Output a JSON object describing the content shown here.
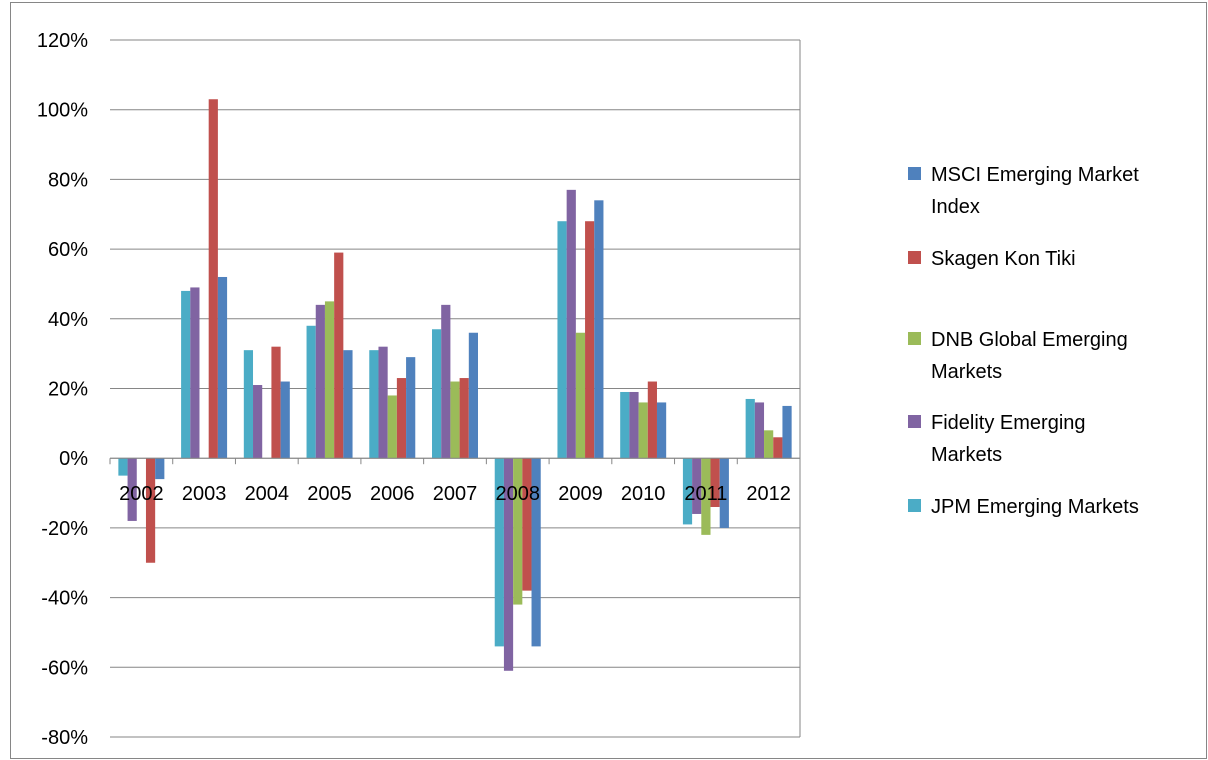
{
  "chart_data": {
    "type": "bar",
    "categories": [
      "2002",
      "2003",
      "2004",
      "2005",
      "2006",
      "2007",
      "2008",
      "2009",
      "2010",
      "2011",
      "2012"
    ],
    "series": [
      {
        "name": "JPM Emerging Markets",
        "color": "#4BACC6",
        "values": [
          -5,
          48,
          31,
          38,
          31,
          37,
          -54,
          68,
          19,
          -19,
          17
        ]
      },
      {
        "name": "Fidelity Emerging Markets",
        "color": "#8064A2",
        "values": [
          -18,
          49,
          21,
          44,
          32,
          44,
          -61,
          77,
          19,
          -16,
          16
        ]
      },
      {
        "name": "DNB Global Emerging Markets",
        "color": "#9BBB59",
        "values": [
          null,
          null,
          null,
          45,
          18,
          22,
          -42,
          36,
          16,
          -22,
          8
        ]
      },
      {
        "name": "Skagen Kon Tiki",
        "color": "#C0504D",
        "values": [
          -30,
          103,
          32,
          59,
          23,
          23,
          -38,
          68,
          22,
          -14,
          6
        ]
      },
      {
        "name": "MSCI Emerging Market Index",
        "color": "#4F81BD",
        "values": [
          -6,
          52,
          22,
          31,
          29,
          36,
          -54,
          74,
          16,
          -20,
          15
        ]
      }
    ],
    "y_ticks": [
      "120%",
      "100%",
      "80%",
      "60%",
      "40%",
      "20%",
      "0%",
      "-20%",
      "-40%",
      "-60%",
      "-80%"
    ],
    "ylim": [
      -80,
      120
    ],
    "y_unit": "%",
    "grid": true,
    "legend_position": "right",
    "legend": [
      {
        "label": "MSCI Emerging Market Index",
        "lines": [
          "MSCI Emerging Market",
          "Index"
        ],
        "color": "#4F81BD"
      },
      {
        "label": "Skagen Kon Tiki",
        "lines": [
          "Skagen Kon Tiki"
        ],
        "color": "#C0504D"
      },
      {
        "label": "DNB Global Emerging Markets",
        "lines": [
          "DNB Global Emerging",
          "Markets"
        ],
        "color": "#9BBB59"
      },
      {
        "label": "Fidelity Emerging Markets",
        "lines": [
          "Fidelity Emerging",
          "Markets"
        ],
        "color": "#8064A2"
      },
      {
        "label": "JPM Emerging Markets",
        "lines": [
          "JPM Emerging Markets"
        ],
        "color": "#4BACC6"
      }
    ]
  }
}
